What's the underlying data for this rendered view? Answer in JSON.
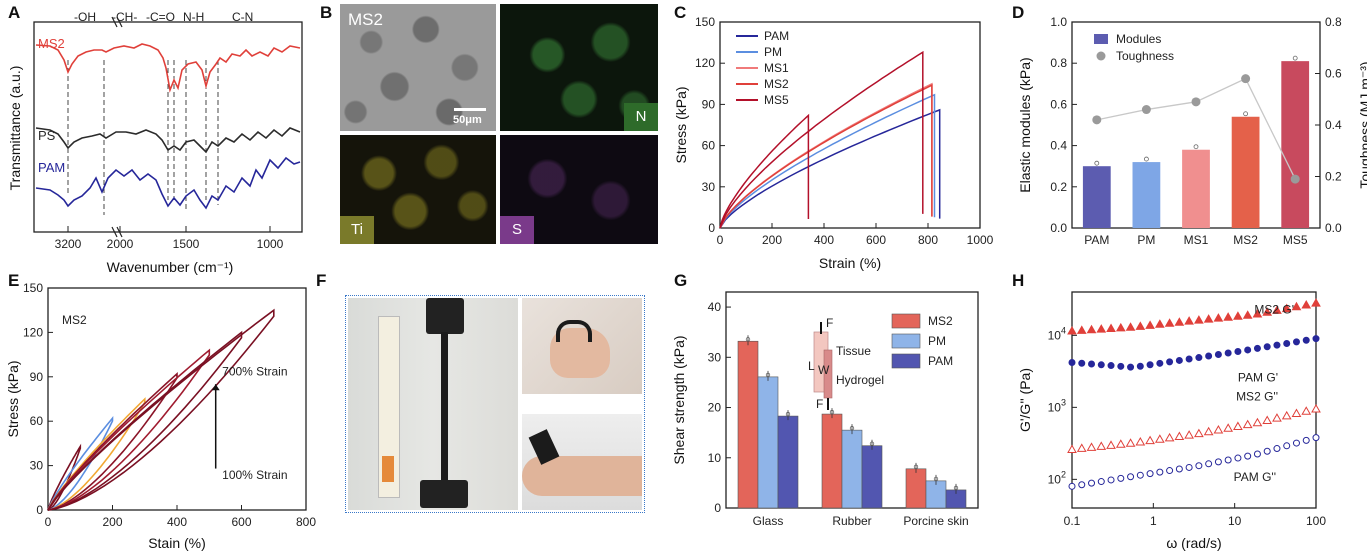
{
  "colors": {
    "ms2_red": "#e0403a",
    "ps_black": "#2b2b2b",
    "pam_blue": "#26279a",
    "pm_blue": "#5b8ee0",
    "ms1_pink": "#f07a7a",
    "ms5_dark": "#b3102a",
    "gray": "#9a9a9a",
    "maroon": "#7a1023",
    "orange": "#f2a834"
  },
  "chart_data": [
    {
      "id": "A",
      "type": "line",
      "panel": "A",
      "title": "",
      "xlabel": "Wavenumber (cm⁻¹)",
      "ylabel": "Transmittance (a.u.)",
      "xticks": [
        "3200",
        "2000",
        "1500",
        "1000"
      ],
      "series": [
        {
          "name": "MS2"
        },
        {
          "name": "PS"
        },
        {
          "name": "PAM"
        }
      ],
      "annotations": [
        "-OH",
        "-CH-",
        "-C=O",
        "N-H",
        "C-N"
      ]
    },
    {
      "id": "B",
      "type": "image",
      "panel": "B",
      "labels": [
        "MS2",
        "N",
        "Ti",
        "S"
      ],
      "scalebar": "50μm"
    },
    {
      "id": "C",
      "type": "line",
      "panel": "C",
      "xlabel": "Strain (%)",
      "ylabel": "Stress (kPa)",
      "xlim": [
        0,
        1000
      ],
      "ylim": [
        0,
        150
      ],
      "xticks": [
        "0",
        "200",
        "400",
        "600",
        "800",
        "1000"
      ],
      "yticks": [
        "0",
        "30",
        "60",
        "90",
        "120",
        "150"
      ],
      "series": [
        {
          "name": "PAM",
          "fracture_strain": 845,
          "max_stress": 86
        },
        {
          "name": "PM",
          "fracture_strain": 825,
          "max_stress": 97
        },
        {
          "name": "MS1",
          "fracture_strain": 815,
          "max_stress": 105
        },
        {
          "name": "MS2",
          "fracture_strain": 815,
          "max_stress": 104
        },
        {
          "name": "MS5",
          "fracture_strain": 780,
          "max_stress": 128
        },
        {
          "name": "",
          "fracture_strain": 340,
          "max_stress": 82
        }
      ]
    },
    {
      "id": "D",
      "type": "bar",
      "panel": "D",
      "categories": [
        "PAM",
        "PM",
        "MS1",
        "MS2",
        "MS5"
      ],
      "ylabel": "Elastic modules (kPa)",
      "y2label": "Toughness (MJ m⁻³)",
      "ylim": [
        0,
        1.0
      ],
      "y2lim": [
        0,
        0.8
      ],
      "yticks": [
        "0.0",
        "0.2",
        "0.4",
        "0.6",
        "0.8",
        "1.0"
      ],
      "y2ticks": [
        "0.0",
        "0.2",
        "0.4",
        "0.6",
        "0.8"
      ],
      "series": [
        {
          "name": "Modules",
          "values": [
            0.3,
            0.32,
            0.38,
            0.54,
            0.81
          ]
        },
        {
          "name": "Toughness",
          "values": [
            0.42,
            0.46,
            0.49,
            0.58,
            0.19
          ]
        }
      ]
    },
    {
      "id": "E",
      "type": "line",
      "panel": "E",
      "xlabel": "Stain (%)",
      "ylabel": "Stress (kPa)",
      "xlim": [
        0,
        800
      ],
      "ylim": [
        0,
        150
      ],
      "xticks": [
        "0",
        "200",
        "400",
        "600",
        "800"
      ],
      "yticks": [
        "0",
        "30",
        "60",
        "90",
        "120",
        "150"
      ],
      "sample_label": "MS2",
      "arrow_top": "700% Strain",
      "arrow_bottom": "100% Strain",
      "cycles": [
        {
          "strain": 100,
          "stress": 43
        },
        {
          "strain": 200,
          "stress": 62
        },
        {
          "strain": 300,
          "stress": 75
        },
        {
          "strain": 400,
          "stress": 92
        },
        {
          "strain": 500,
          "stress": 108
        },
        {
          "strain": 600,
          "stress": 120
        },
        {
          "strain": 700,
          "stress": 135
        }
      ]
    },
    {
      "id": "F",
      "type": "image",
      "panel": "F"
    },
    {
      "id": "G",
      "type": "bar",
      "panel": "G",
      "categories": [
        "Glass",
        "Rubber",
        "Porcine skin"
      ],
      "ylabel": "Shear strength (kPa)",
      "ylim": [
        0,
        43
      ],
      "yticks": [
        "0",
        "10",
        "20",
        "30",
        "40"
      ],
      "inset_labels": [
        "F",
        "Tissue",
        "L",
        "W",
        "Hydrogel",
        "F"
      ],
      "series": [
        {
          "name": "MS2",
          "values": [
            33.2,
            18.7,
            7.8
          ]
        },
        {
          "name": "PM",
          "values": [
            26.1,
            15.5,
            5.4
          ]
        },
        {
          "name": "PAM",
          "values": [
            18.3,
            12.4,
            3.6
          ]
        }
      ]
    },
    {
      "id": "H",
      "type": "scatter",
      "panel": "H",
      "xlabel": "ω (rad/s)",
      "ylabel": "G'/G'' (Pa)",
      "xscale": "log",
      "yscale": "log",
      "xlim": [
        0.1,
        100
      ],
      "xticks": [
        "0.1",
        "1",
        "10",
        "100"
      ],
      "series": [
        {
          "name": "MS2 G'",
          "values": [
            11500,
            13000,
            16000,
            19500,
            28000
          ]
        },
        {
          "name": "PAM G'",
          "values": [
            4200,
            3600,
            4800,
            6500,
            9000
          ]
        },
        {
          "name": "MS2 G''",
          "values": [
            260,
            320,
            420,
            600,
            950
          ]
        },
        {
          "name": "PAM G''",
          "values": [
            80,
            110,
            150,
            220,
            380
          ]
        }
      ]
    }
  ]
}
